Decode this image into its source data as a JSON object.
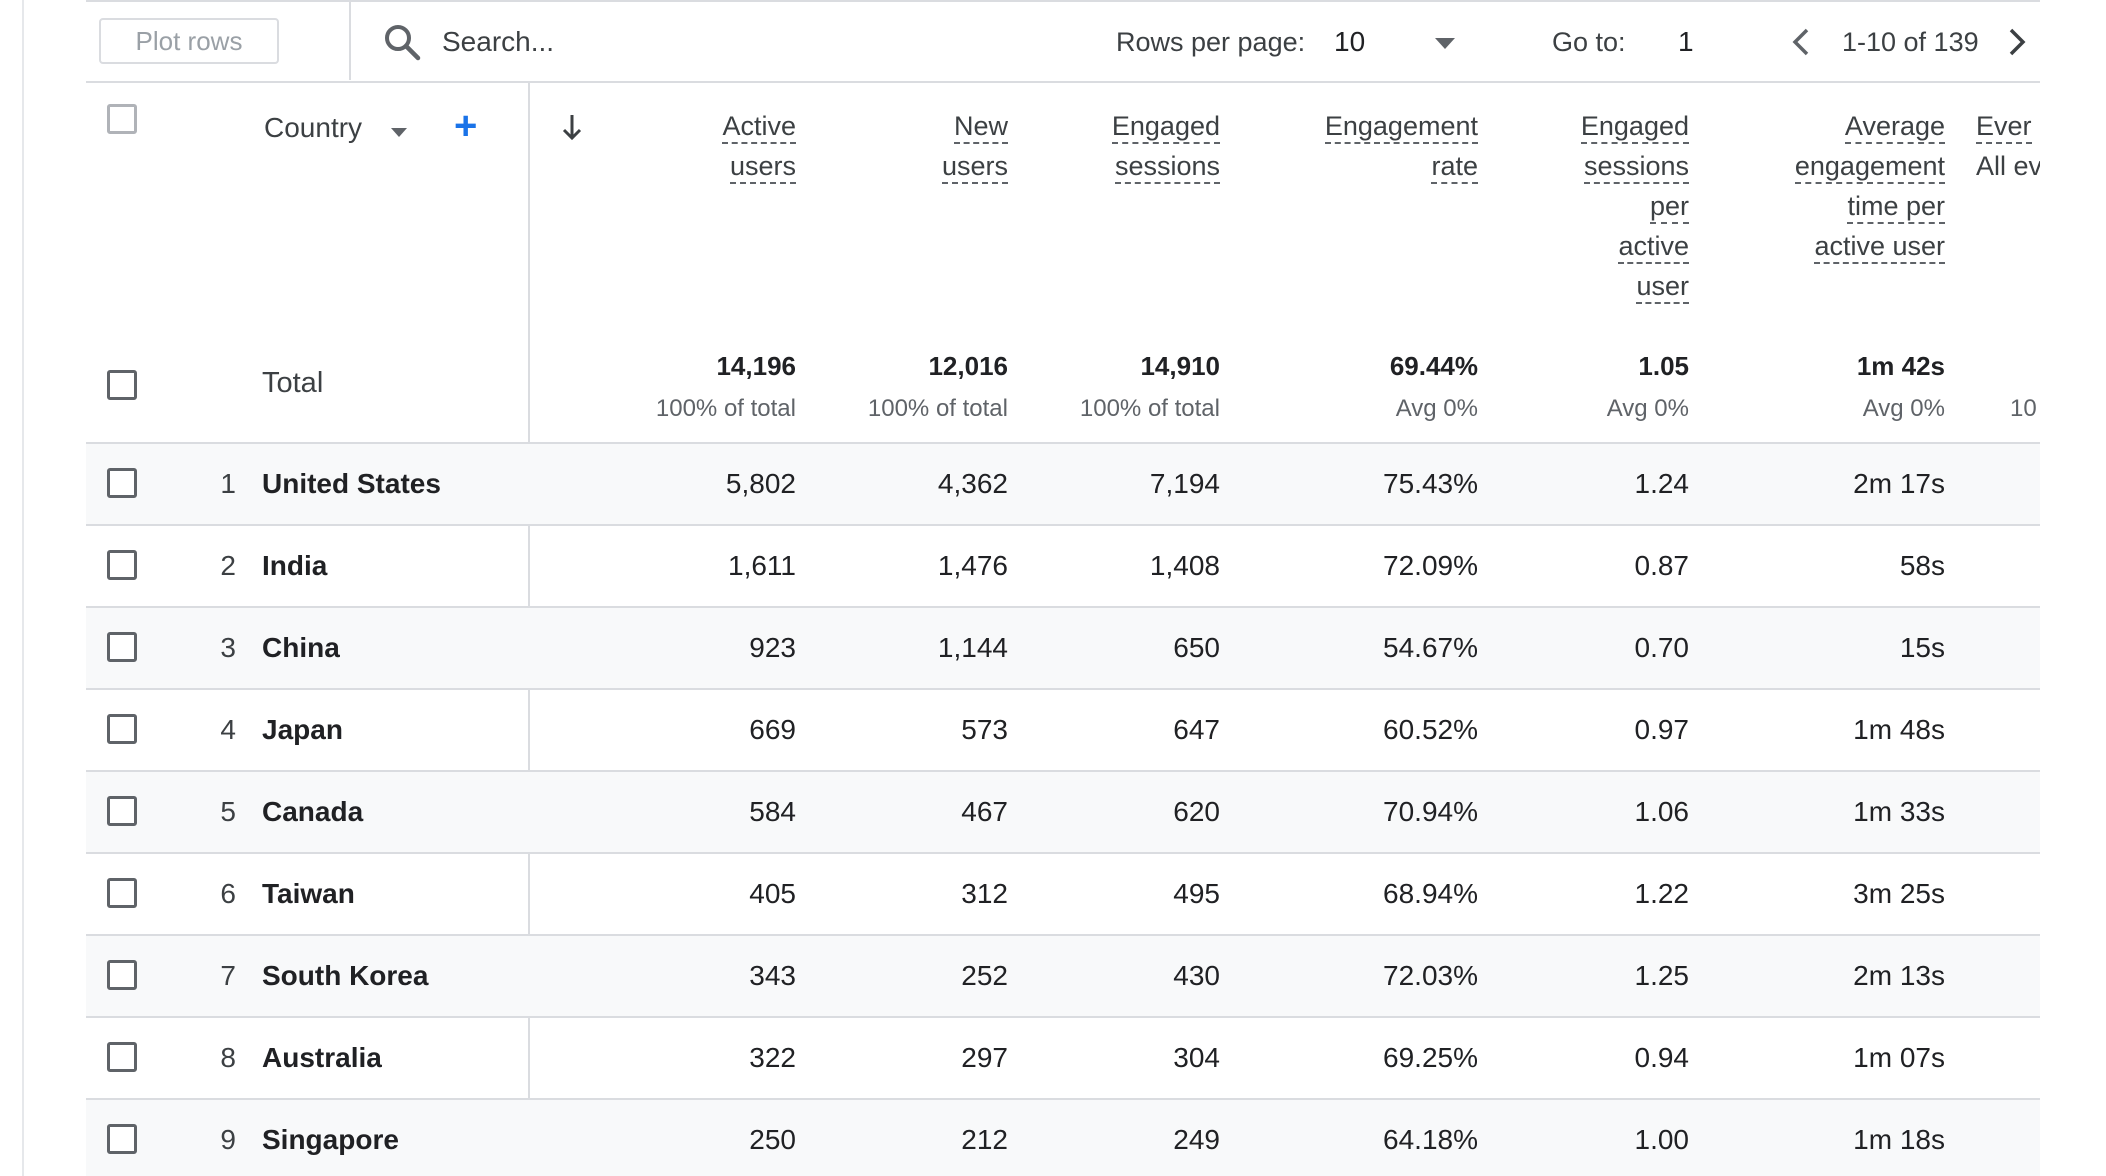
{
  "toolbar": {
    "plot_rows_label": "Plot rows",
    "search_placeholder": "Search...",
    "rows_per_page_label": "Rows per page:",
    "rows_per_page_value": "10",
    "goto_label": "Go to:",
    "goto_value": "1",
    "pagination_range": "1-10 of 139",
    "icons": {
      "search": "search-icon",
      "prev": "chevron-left-icon",
      "next": "chevron-right-icon",
      "dropdown": "caret-down-icon"
    }
  },
  "table": {
    "dimension_header": "Country",
    "add_dimension_icon": "plus-icon",
    "sort_icon": "arrow-down-icon",
    "columns": [
      {
        "key": "active_users",
        "lines": [
          "Active",
          "users"
        ]
      },
      {
        "key": "new_users",
        "lines": [
          "New",
          "users"
        ]
      },
      {
        "key": "engaged_sessions",
        "lines": [
          "Engaged",
          "sessions"
        ]
      },
      {
        "key": "engagement_rate",
        "lines": [
          "Engagement",
          "rate"
        ]
      },
      {
        "key": "engaged_sessions_per_user",
        "lines": [
          "Engaged",
          "sessions",
          "per",
          "active",
          "user"
        ]
      },
      {
        "key": "avg_engagement_time",
        "lines": [
          "Average",
          "engagement",
          "time per",
          "active user"
        ]
      },
      {
        "key": "event_count",
        "lines": [
          "Ever",
          "All ev"
        ]
      }
    ],
    "totals": {
      "label": "Total",
      "values": [
        "14,196",
        "12,016",
        "14,910",
        "69.44%",
        "1.05",
        "1m 42s",
        ""
      ],
      "subs": [
        "100% of total",
        "100% of total",
        "100% of total",
        "Avg 0%",
        "Avg 0%",
        "Avg 0%",
        "10"
      ]
    },
    "rows": [
      {
        "index": "1",
        "country": "United States",
        "values": [
          "5,802",
          "4,362",
          "7,194",
          "75.43%",
          "1.24",
          "2m 17s"
        ]
      },
      {
        "index": "2",
        "country": "India",
        "values": [
          "1,611",
          "1,476",
          "1,408",
          "72.09%",
          "0.87",
          "58s"
        ]
      },
      {
        "index": "3",
        "country": "China",
        "values": [
          "923",
          "1,144",
          "650",
          "54.67%",
          "0.70",
          "15s"
        ]
      },
      {
        "index": "4",
        "country": "Japan",
        "values": [
          "669",
          "573",
          "647",
          "60.52%",
          "0.97",
          "1m 48s"
        ]
      },
      {
        "index": "5",
        "country": "Canada",
        "values": [
          "584",
          "467",
          "620",
          "70.94%",
          "1.06",
          "1m 33s"
        ]
      },
      {
        "index": "6",
        "country": "Taiwan",
        "values": [
          "405",
          "312",
          "495",
          "68.94%",
          "1.22",
          "3m 25s"
        ]
      },
      {
        "index": "7",
        "country": "South Korea",
        "values": [
          "343",
          "252",
          "430",
          "72.03%",
          "1.25",
          "2m 13s"
        ]
      },
      {
        "index": "8",
        "country": "Australia",
        "values": [
          "322",
          "297",
          "304",
          "69.25%",
          "0.94",
          "1m 07s"
        ]
      },
      {
        "index": "9",
        "country": "Singapore",
        "values": [
          "250",
          "212",
          "249",
          "64.18%",
          "1.00",
          "1m 18s"
        ]
      }
    ]
  },
  "colors": {
    "accent": "#1a73e8",
    "row_alt": "#f8f9fa",
    "border": "#dadce0"
  }
}
